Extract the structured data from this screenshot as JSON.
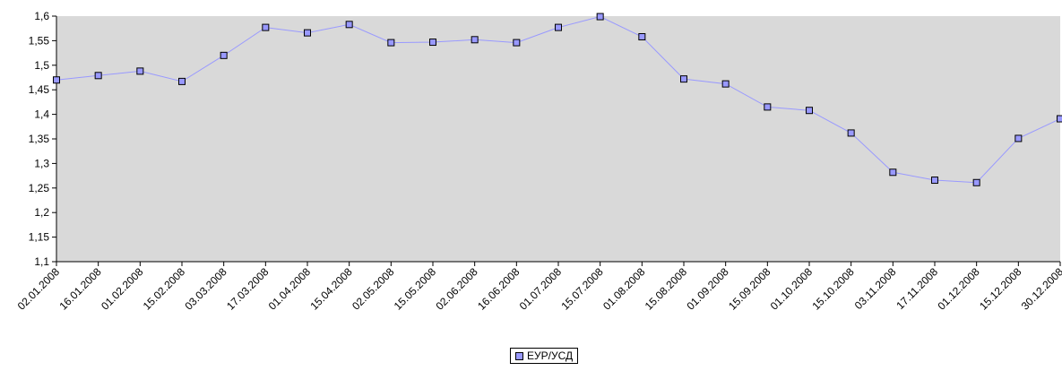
{
  "chart_data": {
    "type": "line",
    "title": "",
    "xlabel": "",
    "ylabel": "",
    "ylim": [
      1.1,
      1.6
    ],
    "ytick_labels": [
      "1,1",
      "1,15",
      "1,2",
      "1,25",
      "1,3",
      "1,35",
      "1,4",
      "1,45",
      "1,5",
      "1,55",
      "1,6"
    ],
    "categories": [
      "02.01.2008",
      "16.01.2008",
      "01.02.2008",
      "15.02.2008",
      "03.03.2008",
      "17.03.2008",
      "01.04.2008",
      "15.04.2008",
      "02.05.2008",
      "15.05.2008",
      "02.06.2008",
      "16.06.2008",
      "01.07.2008",
      "15.07.2008",
      "01.08.2008",
      "15.08.2008",
      "01.09.2008",
      "15.09.2008",
      "01.10.2008",
      "15.10.2008",
      "03.11.2008",
      "17.11.2008",
      "01.12.2008",
      "15.12.2008",
      "30.12.2008"
    ],
    "series": [
      {
        "name": "ЕУР/УСД",
        "values": [
          1.47,
          1.479,
          1.488,
          1.467,
          1.52,
          1.577,
          1.566,
          1.583,
          1.546,
          1.547,
          1.552,
          1.546,
          1.577,
          1.599,
          1.558,
          1.472,
          1.462,
          1.415,
          1.408,
          1.362,
          1.282,
          1.266,
          1.261,
          1.351,
          1.391
        ]
      }
    ],
    "grid": false,
    "legend_position": "bottom-center",
    "colors": {
      "plot_background": "#d9d9d9",
      "line": "#9999ff",
      "marker_fill": "#9999ff",
      "marker_stroke": "#000000",
      "axis": "#000000"
    }
  }
}
